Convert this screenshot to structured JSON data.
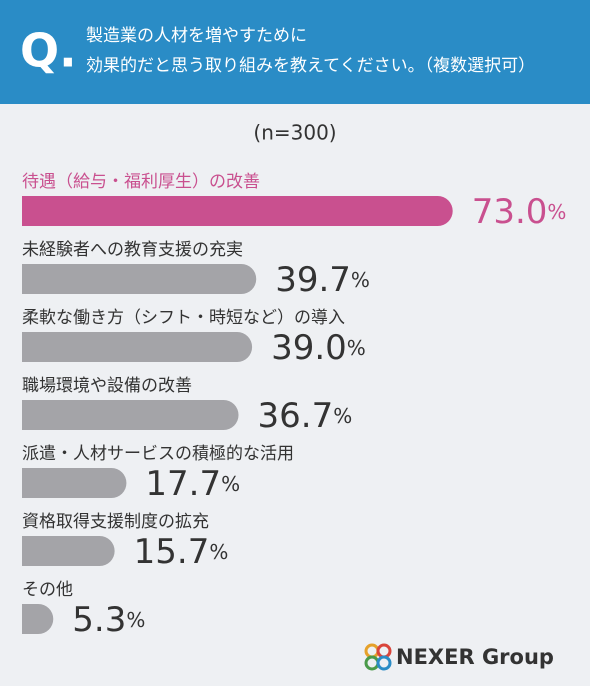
{
  "chart_data": {
    "type": "bar",
    "badge": "Q.",
    "title": [
      "製造業の人材を増やすために",
      "効果的だと思う取り組みを教えてください。（複数選択可）"
    ],
    "subtitle": "(n=300)",
    "categories": [
      "待遇（給与・福利厚生）の改善",
      "未経験者への教育支援の充実",
      "柔軟な働き方（シフト・時短など）の導入",
      "職場環境や設備の改善",
      "派遣・人材サービスの積極的な活用",
      "資格取得支援制度の拡充",
      "その他"
    ],
    "values": [
      73.0,
      39.7,
      39.0,
      36.7,
      17.7,
      15.7,
      5.3
    ],
    "value_labels": [
      "73.0%",
      "39.7%",
      "39.0%",
      "36.7%",
      "17.7%",
      "15.7%",
      "5.3%"
    ],
    "colors": [
      "#c9508f",
      "#a4a4a8",
      "#a4a4a8",
      "#a4a4a8",
      "#a4a4a8",
      "#a4a4a8",
      "#a4a4a8"
    ],
    "label_colors": [
      "#c9508f",
      "#333333",
      "#333333",
      "#333333",
      "#333333",
      "#333333",
      "#333333"
    ],
    "logo": "NEXER Group"
  }
}
